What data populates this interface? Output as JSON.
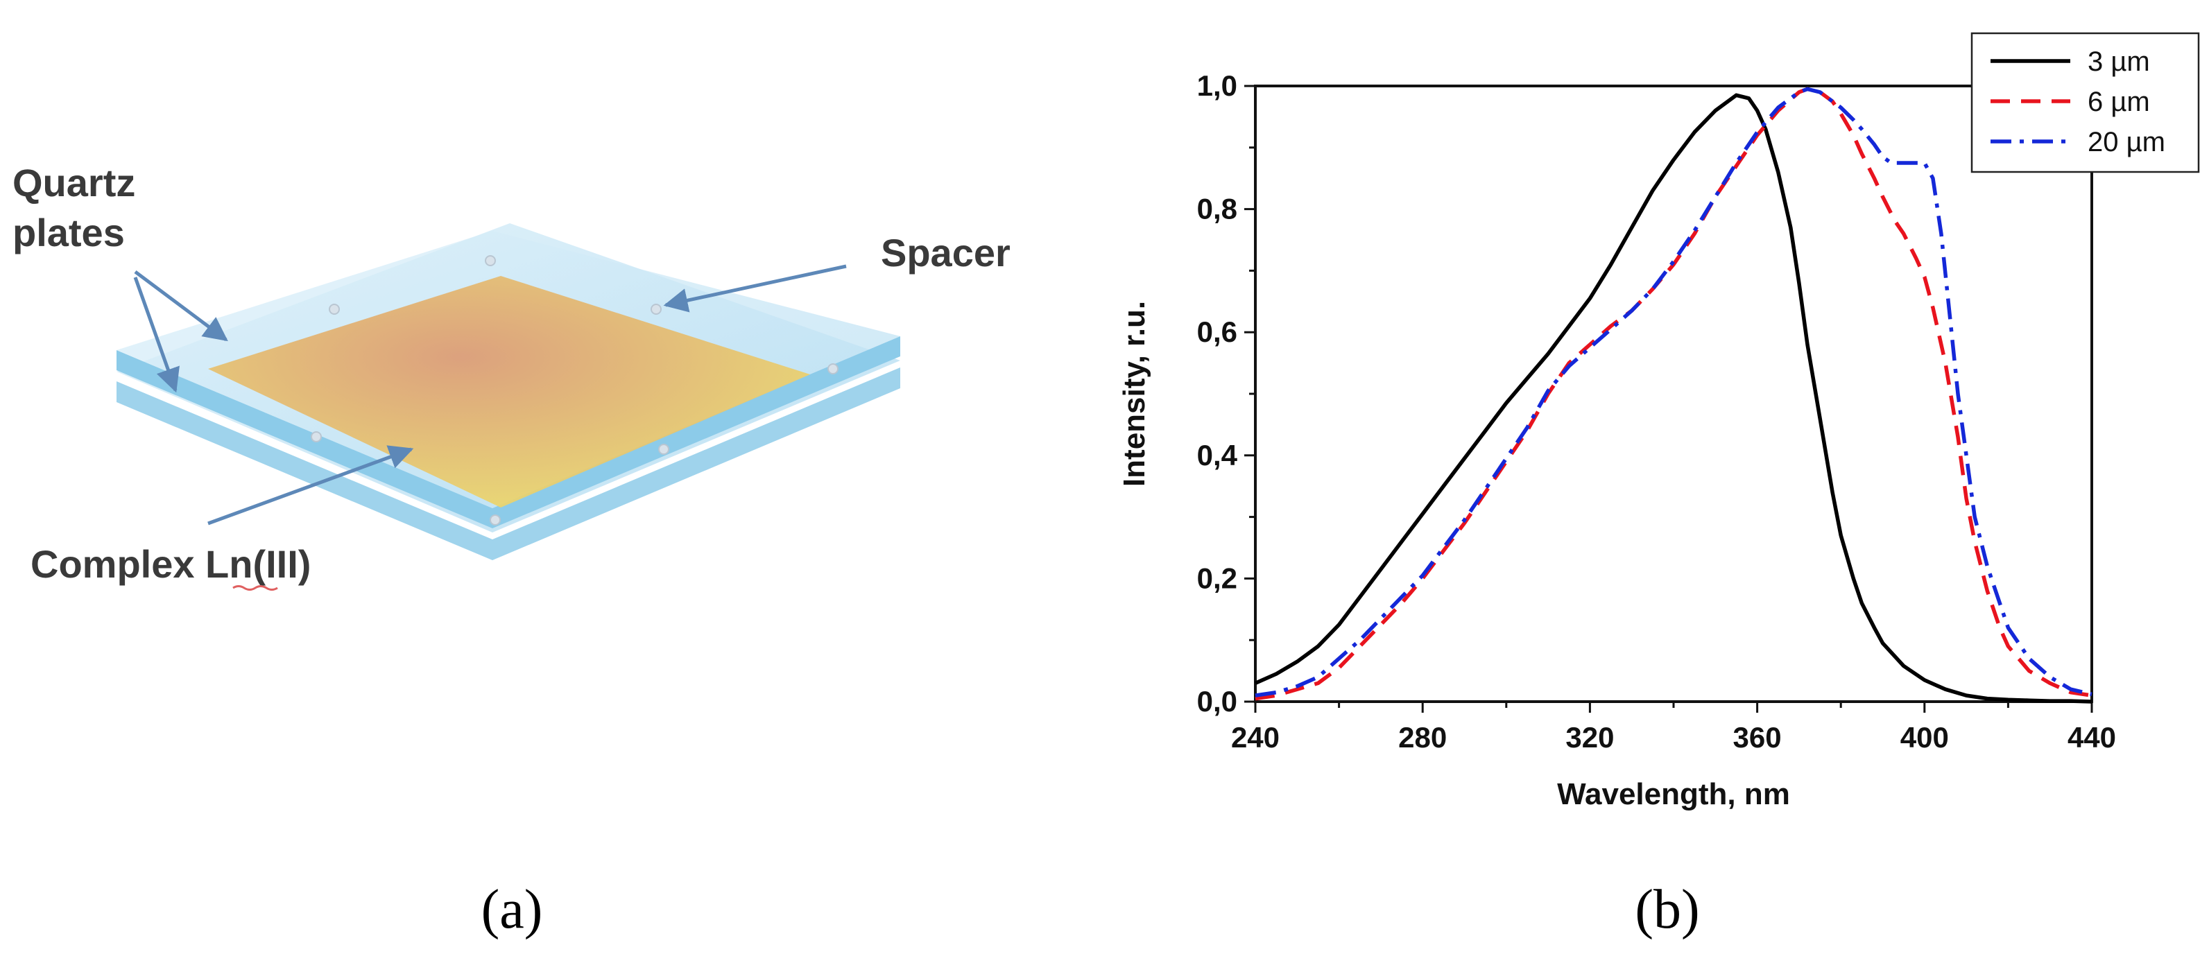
{
  "panel_a": {
    "label": "(a)",
    "callouts": {
      "quartz": [
        "Quartz",
        "plates"
      ],
      "spacer": "Spacer",
      "complex": "Complex Ln(III)"
    },
    "colors": {
      "glass": "#bfe3f4",
      "glass_edge": "#79c3e6",
      "film_center": "#dd9b73",
      "film_edge": "#eede6a",
      "arrow": "#5d88b8"
    }
  },
  "panel_b": {
    "label": "(b)"
  },
  "chart_data": {
    "type": "line",
    "title": "",
    "xlabel": "Wavelength, nm",
    "ylabel": "Intensity, r.u.",
    "xlim": [
      240,
      440
    ],
    "ylim": [
      0.0,
      1.0
    ],
    "xticks": [
      240,
      280,
      320,
      360,
      400,
      440
    ],
    "xtick_labels": [
      "240",
      "280",
      "320",
      "360",
      "400",
      "440"
    ],
    "yticks": [
      0.0,
      0.2,
      0.4,
      0.6,
      0.8,
      1.0
    ],
    "ytick_labels": [
      "0,0",
      "0,2",
      "0,4",
      "0,6",
      "0,8",
      "1,0"
    ],
    "legend_position": "top-right",
    "series": [
      {
        "name": "3 µm",
        "color": "#000000",
        "dash": "solid",
        "x": [
          240,
          245,
          250,
          255,
          260,
          265,
          270,
          275,
          280,
          285,
          290,
          295,
          300,
          305,
          310,
          315,
          320,
          325,
          330,
          335,
          340,
          345,
          350,
          355,
          358,
          360,
          362,
          365,
          368,
          370,
          372,
          375,
          378,
          380,
          383,
          385,
          388,
          390,
          395,
          400,
          405,
          410,
          415,
          420,
          425,
          430,
          435,
          440
        ],
        "y": [
          0.03,
          0.045,
          0.065,
          0.09,
          0.125,
          0.17,
          0.215,
          0.26,
          0.305,
          0.35,
          0.395,
          0.44,
          0.485,
          0.525,
          0.565,
          0.61,
          0.655,
          0.71,
          0.77,
          0.83,
          0.88,
          0.925,
          0.96,
          0.985,
          0.98,
          0.96,
          0.93,
          0.86,
          0.77,
          0.68,
          0.58,
          0.46,
          0.34,
          0.27,
          0.2,
          0.16,
          0.12,
          0.095,
          0.058,
          0.035,
          0.02,
          0.01,
          0.005,
          0.003,
          0.002,
          0.001,
          0.001,
          0.0
        ]
      },
      {
        "name": "6 µm",
        "color": "#e8131e",
        "dash": "dashed",
        "x": [
          240,
          245,
          250,
          255,
          260,
          265,
          270,
          275,
          280,
          285,
          290,
          295,
          300,
          305,
          310,
          315,
          320,
          325,
          330,
          335,
          340,
          345,
          350,
          355,
          360,
          365,
          370,
          372,
          375,
          378,
          380,
          383,
          385,
          388,
          390,
          393,
          395,
          398,
          400,
          402,
          405,
          408,
          410,
          412,
          415,
          418,
          420,
          425,
          430,
          435,
          440
        ],
        "y": [
          0.005,
          0.01,
          0.02,
          0.03,
          0.055,
          0.09,
          0.125,
          0.16,
          0.2,
          0.245,
          0.29,
          0.34,
          0.39,
          0.44,
          0.5,
          0.55,
          0.58,
          0.61,
          0.635,
          0.67,
          0.71,
          0.76,
          0.82,
          0.87,
          0.92,
          0.96,
          0.99,
          0.995,
          0.99,
          0.975,
          0.955,
          0.92,
          0.89,
          0.85,
          0.82,
          0.78,
          0.76,
          0.72,
          0.69,
          0.64,
          0.55,
          0.43,
          0.33,
          0.26,
          0.18,
          0.12,
          0.09,
          0.05,
          0.03,
          0.015,
          0.01
        ]
      },
      {
        "name": "20 µm",
        "color": "#1428d8",
        "dash": "dashdot",
        "x": [
          240,
          245,
          250,
          255,
          260,
          265,
          270,
          275,
          280,
          285,
          290,
          295,
          300,
          305,
          310,
          315,
          320,
          325,
          330,
          335,
          340,
          345,
          350,
          355,
          360,
          365,
          370,
          372,
          375,
          378,
          380,
          383,
          385,
          388,
          390,
          392,
          395,
          398,
          400,
          402,
          404,
          406,
          408,
          410,
          412,
          415,
          418,
          420,
          425,
          430,
          435,
          440
        ],
        "y": [
          0.01,
          0.015,
          0.025,
          0.04,
          0.07,
          0.1,
          0.135,
          0.17,
          0.205,
          0.25,
          0.295,
          0.345,
          0.395,
          0.445,
          0.505,
          0.545,
          0.575,
          0.605,
          0.635,
          0.67,
          0.715,
          0.765,
          0.82,
          0.875,
          0.925,
          0.965,
          0.99,
          0.995,
          0.99,
          0.975,
          0.965,
          0.945,
          0.93,
          0.905,
          0.885,
          0.875,
          0.875,
          0.875,
          0.875,
          0.85,
          0.76,
          0.63,
          0.5,
          0.4,
          0.3,
          0.22,
          0.16,
          0.12,
          0.07,
          0.04,
          0.02,
          0.012
        ]
      }
    ]
  }
}
